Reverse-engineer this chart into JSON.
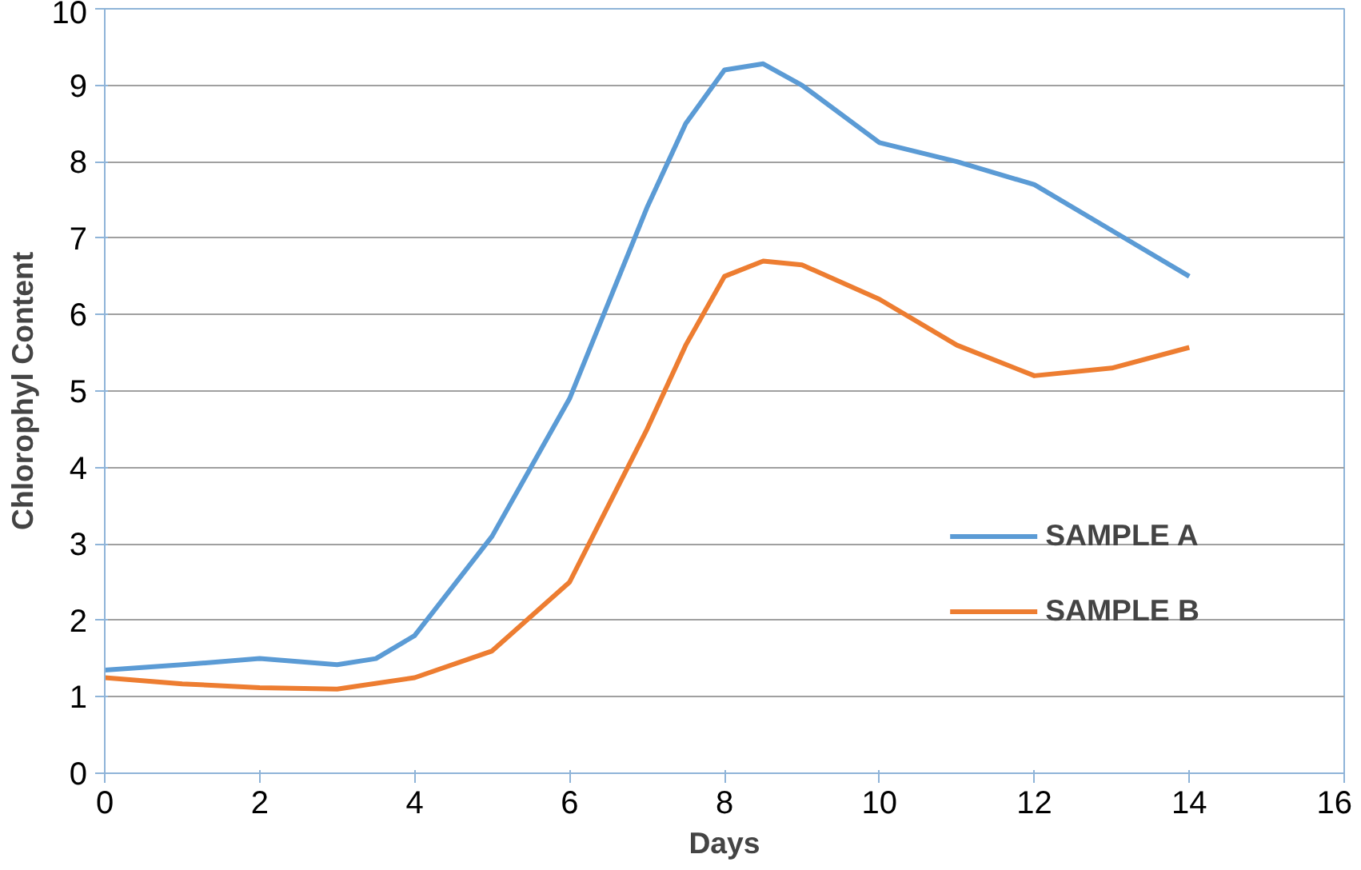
{
  "chart_data": {
    "type": "line",
    "xlabel": "Days",
    "ylabel": "Chlorophyl Content",
    "xlim": [
      0,
      16
    ],
    "xticks": [
      0,
      2,
      4,
      6,
      8,
      10,
      12,
      14,
      16
    ],
    "ylim": [
      0,
      10
    ],
    "yticks": [
      0,
      1,
      2,
      3,
      4,
      5,
      6,
      7,
      8,
      9,
      10
    ],
    "grid": "y",
    "legend": "bottom right",
    "marker": "none",
    "line_style": "solid",
    "series": [
      {
        "name": "SAMPLE A",
        "color": "#5b9bd5",
        "x": [
          0,
          1,
          2,
          3,
          3.5,
          4,
          5,
          6,
          7,
          7.5,
          8,
          8.5,
          9,
          10,
          11,
          12,
          13,
          14
        ],
        "values": [
          1.35,
          1.42,
          1.5,
          1.42,
          1.5,
          1.8,
          3.1,
          4.9,
          7.4,
          8.5,
          9.2,
          9.28,
          9.0,
          8.25,
          8.0,
          7.7,
          7.1,
          6.5
        ]
      },
      {
        "name": "SAMPLE B",
        "color": "#ed7d31",
        "x": [
          0,
          1,
          2,
          3,
          4,
          5,
          6,
          7,
          7.5,
          8,
          8.5,
          9,
          10,
          11,
          12,
          13,
          14
        ],
        "values": [
          1.25,
          1.17,
          1.12,
          1.1,
          1.25,
          1.6,
          2.5,
          4.5,
          5.6,
          6.5,
          6.7,
          6.65,
          6.2,
          5.6,
          5.2,
          5.3,
          5.57
        ]
      }
    ]
  }
}
